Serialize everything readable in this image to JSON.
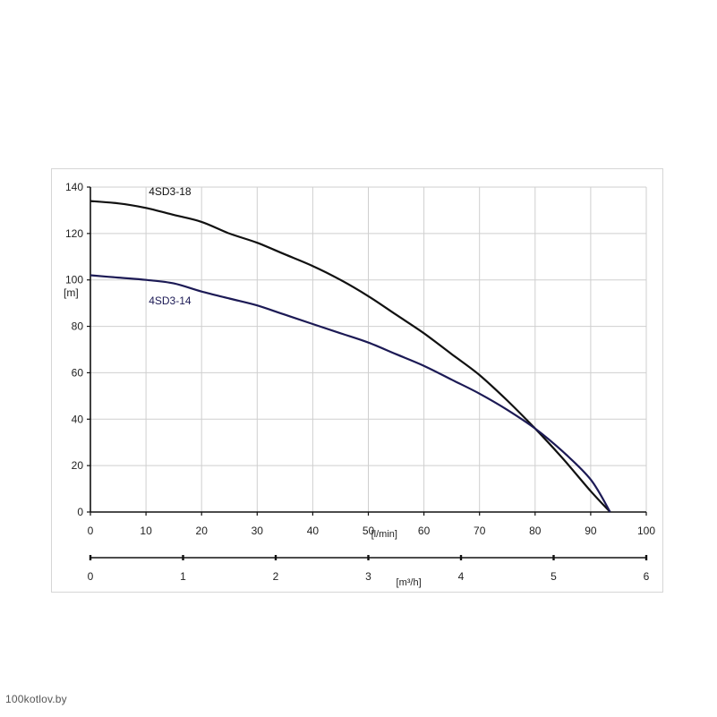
{
  "watermark": "100kotlov.by",
  "chart_data": {
    "type": "line",
    "title": "",
    "ylabel": "[m]",
    "xlabel": "[l/min]",
    "x2label": "[m³/h]",
    "xlim": [
      0,
      100
    ],
    "ylim": [
      0,
      140
    ],
    "x2lim": [
      0,
      6
    ],
    "xticks": [
      0,
      10,
      20,
      30,
      40,
      50,
      60,
      70,
      80,
      90,
      100
    ],
    "yticks": [
      0,
      20,
      40,
      60,
      80,
      100,
      120,
      140
    ],
    "x2ticks": [
      0,
      1,
      2,
      3,
      4,
      5,
      6
    ],
    "grid": true,
    "series": [
      {
        "name": "4SD3-18",
        "color": "#111111",
        "x": [
          0,
          5,
          10,
          15,
          20,
          25,
          30,
          35,
          40,
          45,
          50,
          55,
          60,
          65,
          70,
          75,
          80,
          85,
          90,
          93.5
        ],
        "y": [
          134,
          133,
          131,
          128,
          125,
          120,
          116,
          111,
          106,
          100,
          93,
          85,
          77,
          68,
          59,
          48,
          36,
          23,
          9,
          0
        ]
      },
      {
        "name": "4SD3-14",
        "color": "#1c1a55",
        "x": [
          0,
          5,
          10,
          15,
          20,
          25,
          30,
          35,
          40,
          45,
          50,
          55,
          60,
          65,
          70,
          75,
          80,
          85,
          90,
          93.5
        ],
        "y": [
          102,
          101,
          100,
          98.5,
          95,
          92,
          89,
          85,
          81,
          77,
          73,
          68,
          63,
          57,
          51,
          44,
          36,
          26,
          14,
          0
        ]
      }
    ]
  }
}
